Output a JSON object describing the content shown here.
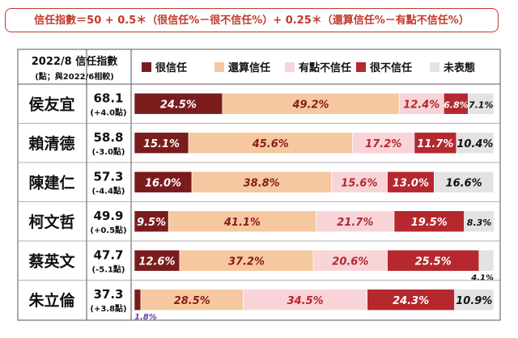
{
  "formula": "信任指數＝50 + 0.5＊（很信任%－很不信任%）+ 0.25＊（還算信任%－有點不信任%）",
  "header": {
    "title": "2022/8 信任指數",
    "subtitle": "(點；與2022/6相較)"
  },
  "colors": {
    "很信任": "#7b1c1c",
    "還算信任": "#f6c8a0",
    "有點不信任": "#f8d4d8",
    "很不信任": "#b4282e",
    "未表態": "#e3e3e3"
  },
  "chart_data": {
    "type": "bar",
    "stacked": true,
    "orientation": "horizontal",
    "legend_position": "top",
    "categories": [
      "侯友宜",
      "賴清德",
      "陳建仁",
      "柯文哲",
      "蔡英文",
      "朱立倫"
    ],
    "index_values": [
      "68.1",
      "58.8",
      "57.3",
      "49.9",
      "47.7",
      "37.3"
    ],
    "index_changes": [
      "(+4.0點)",
      "(-3.0點)",
      "(-4.4點)",
      "(+0.5點)",
      "(-5.1點)",
      "(+3.8點)"
    ],
    "series": [
      {
        "name": "很信任",
        "values": [
          24.5,
          15.1,
          16.0,
          9.5,
          12.6,
          1.8
        ]
      },
      {
        "name": "還算信任",
        "values": [
          49.2,
          45.6,
          38.8,
          41.1,
          37.2,
          28.5
        ]
      },
      {
        "name": "有點不信任",
        "values": [
          12.4,
          17.2,
          15.6,
          21.7,
          20.6,
          34.5
        ]
      },
      {
        "name": "很不信任",
        "values": [
          6.8,
          11.7,
          13.0,
          19.5,
          25.5,
          24.3
        ]
      },
      {
        "name": "未表態",
        "values": [
          7.1,
          10.4,
          16.6,
          8.3,
          4.1,
          10.9
        ]
      }
    ],
    "value_labels": [
      [
        "24.5%",
        "49.2%",
        "12.4%",
        "6.8%",
        "7.1%"
      ],
      [
        "15.1%",
        "45.6%",
        "17.2%",
        "11.7%",
        "10.4%"
      ],
      [
        "16.0%",
        "38.8%",
        "15.6%",
        "13.0%",
        "16.6%"
      ],
      [
        "9.5%",
        "41.1%",
        "21.7%",
        "19.5%",
        "8.3%"
      ],
      [
        "12.6%",
        "37.2%",
        "20.6%",
        "25.5%",
        "4.1%"
      ],
      [
        "1.8%",
        "28.5%",
        "34.5%",
        "24.3%",
        "10.9%"
      ]
    ],
    "xlim": [
      0,
      100
    ]
  }
}
